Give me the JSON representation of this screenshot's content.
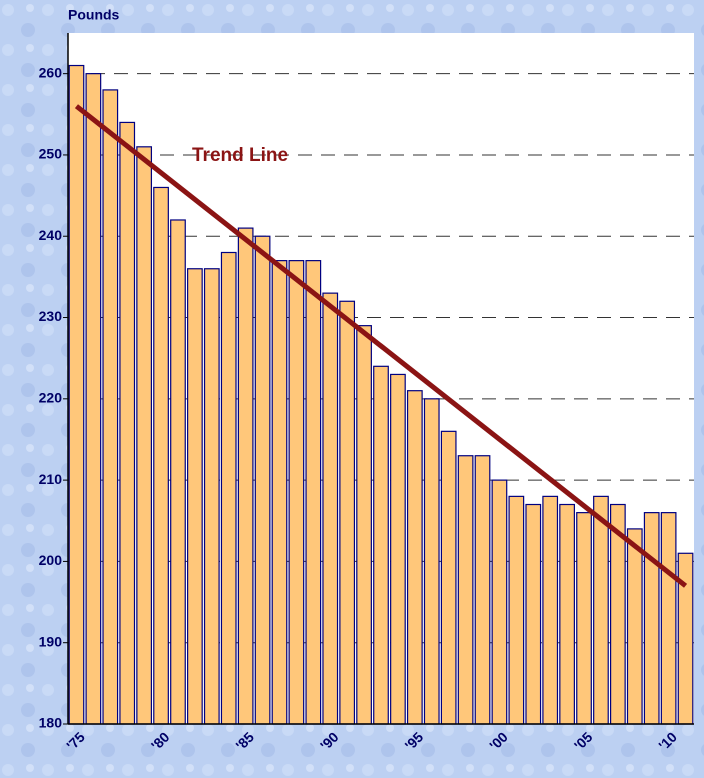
{
  "chart_data": {
    "type": "bar",
    "y_label": "Pounds",
    "categories": [
      "'75",
      null,
      null,
      null,
      null,
      "'80",
      null,
      null,
      null,
      null,
      "'85",
      null,
      null,
      null,
      null,
      "'90",
      null,
      null,
      null,
      null,
      "'95",
      null,
      null,
      null,
      null,
      "'00",
      null,
      null,
      null,
      null,
      "'05",
      null,
      null,
      null,
      null,
      "'10",
      null
    ],
    "values": [
      261,
      260,
      258,
      254,
      251,
      246,
      242,
      236,
      236,
      238,
      241,
      240,
      237,
      237,
      237,
      233,
      232,
      229,
      224,
      223,
      221,
      220,
      216,
      213,
      213,
      210,
      208,
      207,
      208,
      207,
      206,
      208,
      207,
      204,
      206,
      206,
      201
    ],
    "color": "#ffc77a",
    "ylim": [
      180,
      265
    ],
    "yticks": [
      180,
      190,
      200,
      210,
      220,
      230,
      240,
      250,
      260
    ],
    "grid": true,
    "trend_line": {
      "label": "Trend Line",
      "values": [
        256,
        197
      ],
      "color": "#8b1414"
    }
  }
}
